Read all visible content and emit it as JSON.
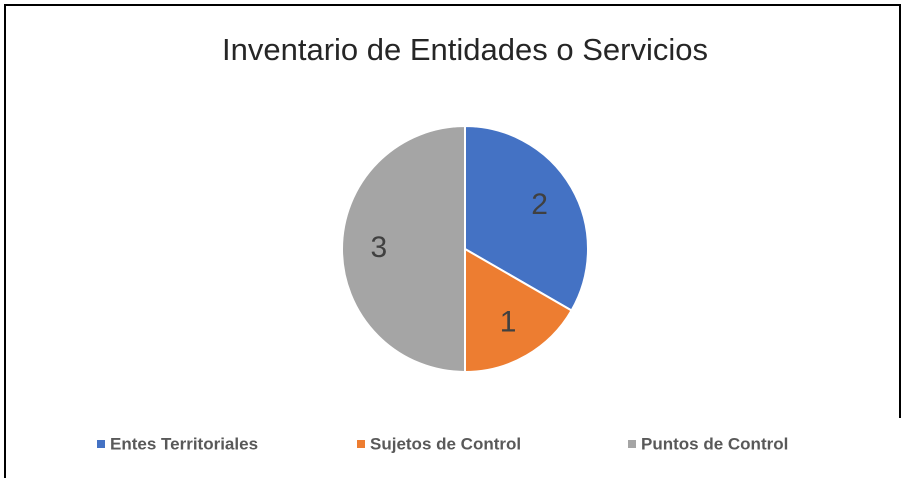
{
  "chart_data": {
    "type": "pie",
    "title": "Inventario de Entidades o Servicios",
    "categories": [
      "Entes Territoriales",
      "Sujetos de Control",
      "Puntos de Control"
    ],
    "values": [
      2,
      1,
      3
    ],
    "colors": [
      "#4472c4",
      "#ed7d31",
      "#a5a5a5"
    ],
    "legend": "bottom"
  }
}
